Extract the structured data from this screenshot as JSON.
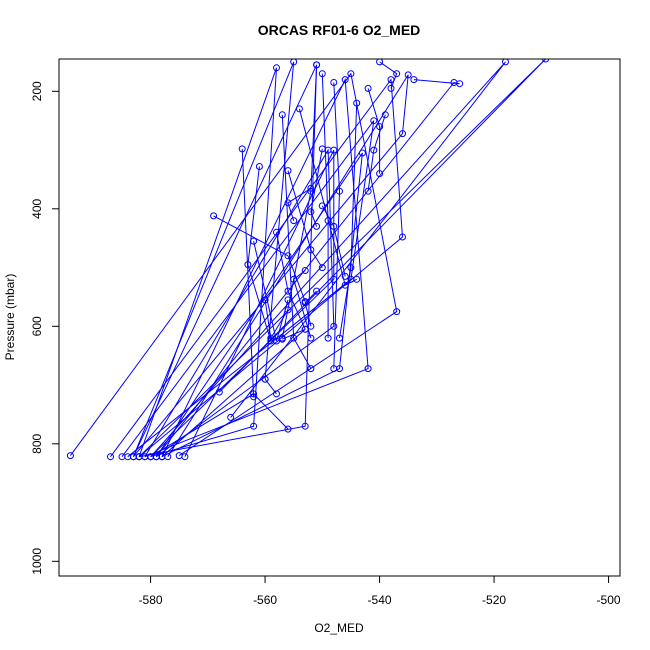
{
  "chart_data": {
    "type": "line",
    "title": "ORCAS RF01-6 O2_MED",
    "xlabel": "O2_MED",
    "ylabel": "Pressure (mbar)",
    "xlim": [
      -596,
      -498
    ],
    "ylim": [
      1025,
      145
    ],
    "y_inverted": true,
    "xticks": [
      -580,
      -560,
      -540,
      -520,
      -500
    ],
    "xtick_labels": [
      "-580",
      "-560",
      "-540",
      "-520",
      "-500"
    ],
    "yticks": [
      200,
      400,
      600,
      800,
      1000
    ],
    "ytick_labels": [
      "200",
      "400",
      "600",
      "800",
      "1000"
    ],
    "grid": false,
    "legend": "none",
    "line_color": "#0000ff",
    "marker": "open-circle",
    "series": [
      {
        "values": [
          [
            -594,
            820
          ],
          [
            -545,
            170
          ],
          [
            -537,
            575
          ],
          [
            -575,
            820
          ]
        ]
      },
      {
        "values": [
          [
            -587,
            822
          ],
          [
            -538,
            180
          ],
          [
            -536,
            448
          ],
          [
            -582,
            822
          ]
        ]
      },
      {
        "values": [
          [
            -585,
            822
          ],
          [
            -541,
            250
          ],
          [
            -545,
            520
          ],
          [
            -584,
            822
          ]
        ]
      },
      {
        "values": [
          [
            -583,
            822
          ],
          [
            -551,
            155
          ],
          [
            -553,
            770
          ],
          [
            -582,
            822
          ]
        ]
      },
      {
        "values": [
          [
            -582,
            822
          ],
          [
            -558,
            160
          ],
          [
            -562,
            770
          ],
          [
            -580,
            822
          ]
        ]
      },
      {
        "values": [
          [
            -581,
            822
          ],
          [
            -549,
            300
          ],
          [
            -548,
            600
          ],
          [
            -579,
            822
          ]
        ]
      },
      {
        "values": [
          [
            -579,
            822
          ],
          [
            -543,
            305
          ],
          [
            -547,
            672
          ],
          [
            -578,
            822
          ]
        ]
      },
      {
        "values": [
          [
            -578,
            822
          ],
          [
            -546,
            180
          ],
          [
            -542,
            672
          ],
          [
            -581,
            822
          ]
        ]
      },
      {
        "values": [
          [
            -577,
            822
          ],
          [
            -535,
            172
          ],
          [
            -536,
            272
          ],
          [
            -583,
            822
          ]
        ]
      },
      {
        "values": [
          [
            -574,
            822
          ],
          [
            -548,
            300
          ],
          [
            -548,
            520
          ],
          [
            -580,
            822
          ]
        ]
      },
      {
        "values": [
          [
            -582,
            822
          ],
          [
            -511,
            145
          ],
          [
            -568,
            712
          ]
        ]
      },
      {
        "values": [
          [
            -580,
            822
          ],
          [
            -518,
            150
          ],
          [
            -566,
            755
          ]
        ]
      },
      {
        "values": [
          [
            -579,
            822
          ],
          [
            -527,
            185
          ],
          [
            -526,
            187
          ],
          [
            -534,
            180
          ]
        ]
      },
      {
        "values": [
          [
            -583,
            822
          ],
          [
            -555,
            150
          ],
          [
            -560,
            690
          ]
        ]
      },
      {
        "values": [
          [
            -580,
            822
          ],
          [
            -562,
            715
          ],
          [
            -556,
            775
          ]
        ]
      },
      {
        "values": [
          [
            -578,
            822
          ],
          [
            -553,
            605
          ],
          [
            -557,
            622
          ]
        ]
      },
      {
        "values": [
          [
            -564,
            298
          ],
          [
            -562,
            720
          ]
        ]
      },
      {
        "values": [
          [
            -561,
            328
          ],
          [
            -563,
            495
          ],
          [
            -559,
            625
          ]
        ]
      },
      {
        "values": [
          [
            -557,
            240
          ],
          [
            -555,
            620
          ],
          [
            -552,
            672
          ]
        ]
      },
      {
        "values": [
          [
            -551,
            155
          ],
          [
            -552,
            370
          ],
          [
            -557,
            620
          ]
        ]
      },
      {
        "values": [
          [
            -569,
            412
          ],
          [
            -556,
            480
          ],
          [
            -553,
            558
          ]
        ]
      },
      {
        "values": [
          [
            -558,
            440
          ],
          [
            -556,
            540
          ],
          [
            -553,
            605
          ]
        ]
      },
      {
        "values": [
          [
            -554,
            230
          ],
          [
            -546,
            530
          ],
          [
            -544,
            520
          ]
        ]
      },
      {
        "values": [
          [
            -550,
            170
          ],
          [
            -549,
            420
          ],
          [
            -549,
            620
          ]
        ]
      },
      {
        "values": [
          [
            -548,
            185
          ],
          [
            -547,
            370
          ],
          [
            -548,
            672
          ]
        ]
      },
      {
        "values": [
          [
            -542,
            195
          ],
          [
            -540,
            260
          ],
          [
            -540,
            340
          ]
        ]
      },
      {
        "values": [
          [
            -539,
            240
          ],
          [
            -541,
            300
          ],
          [
            -542,
            370
          ]
        ]
      },
      {
        "values": [
          [
            -544,
            220
          ],
          [
            -545,
            500
          ],
          [
            -547,
            620
          ]
        ]
      },
      {
        "values": [
          [
            -556,
            335
          ],
          [
            -552,
            470
          ],
          [
            -550,
            500
          ]
        ]
      },
      {
        "values": [
          [
            -550,
            298
          ],
          [
            -552,
            405
          ],
          [
            -551,
            430
          ]
        ]
      },
      {
        "values": [
          [
            -562,
            455
          ],
          [
            -558,
            625
          ],
          [
            -556,
            555
          ]
        ]
      },
      {
        "values": [
          [
            -552,
            620
          ],
          [
            -555,
            520
          ],
          [
            -553,
            505
          ]
        ]
      },
      {
        "values": [
          [
            -560,
            555
          ],
          [
            -559,
            620
          ],
          [
            -556,
            572
          ]
        ]
      },
      {
        "values": [
          [
            -551,
            540
          ],
          [
            -553,
            560
          ],
          [
            -552,
            600
          ]
        ]
      },
      {
        "values": [
          [
            -546,
            515
          ],
          [
            -548,
            430
          ],
          [
            -550,
            395
          ]
        ]
      },
      {
        "values": [
          [
            -538,
            195
          ],
          [
            -537,
            170
          ],
          [
            -540,
            150
          ]
        ]
      },
      {
        "values": [
          [
            -552,
            365
          ],
          [
            -556,
            390
          ],
          [
            -555,
            420
          ]
        ]
      },
      {
        "values": [
          [
            -560,
            690
          ],
          [
            -558,
            715
          ]
        ]
      }
    ]
  }
}
